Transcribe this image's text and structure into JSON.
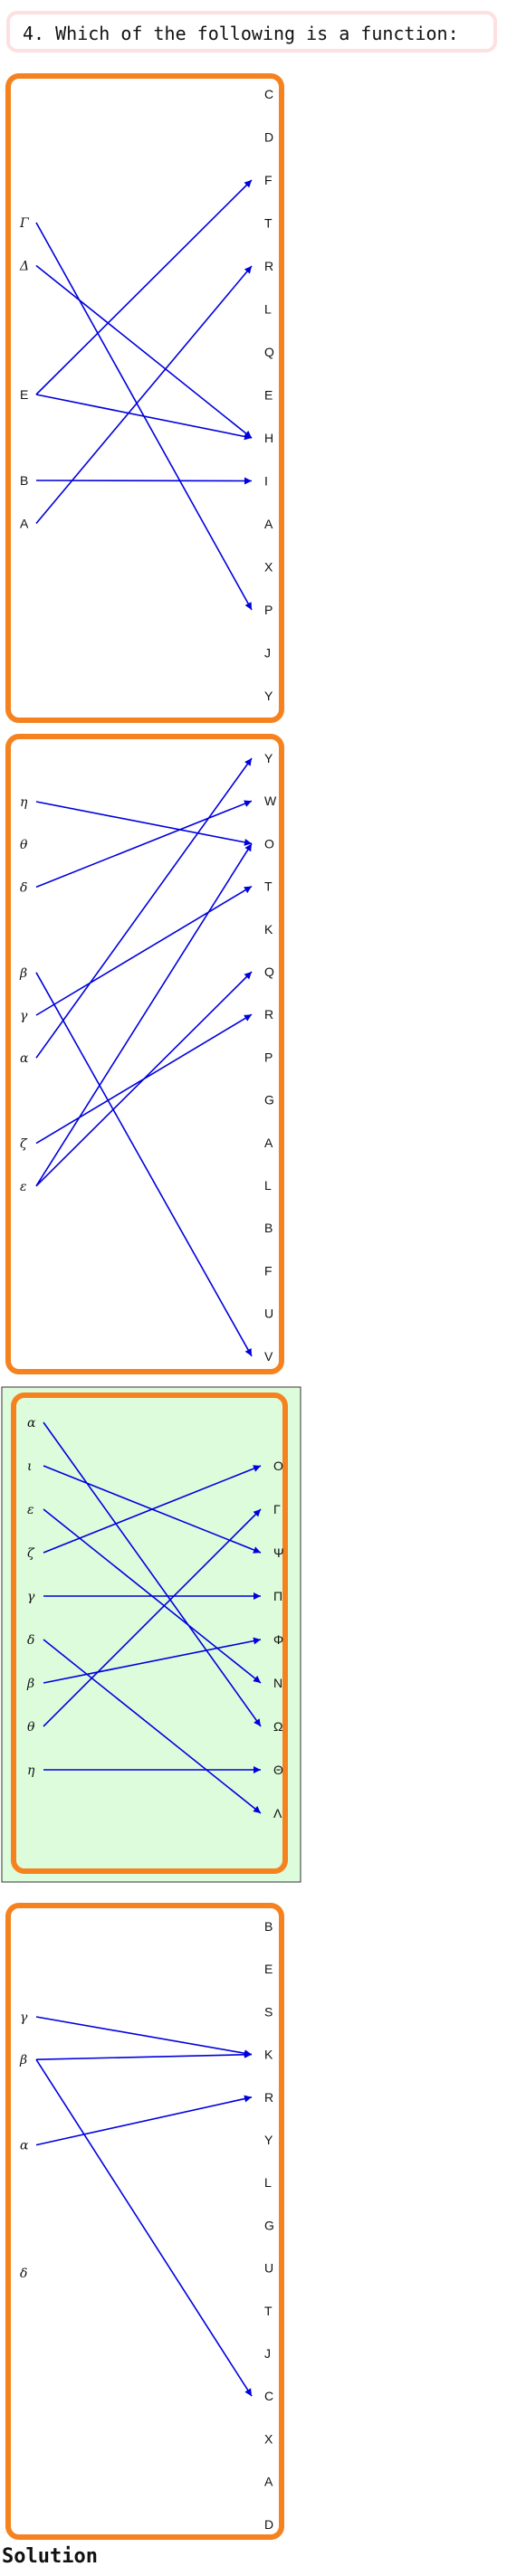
{
  "question": "4. Which of the following is a function:",
  "footer": "Solution",
  "colors": {
    "border": "#f5821f",
    "arrow": "#0000dd",
    "highlight_bg": "#ddfcdc",
    "highlight_outline": "#333333"
  },
  "mappings": [
    {
      "highlighted": false,
      "domain": [
        "Γ",
        "Δ",
        "",
        "",
        "E",
        "",
        "B",
        "A"
      ],
      "codomain": [
        "C",
        "D",
        "F",
        "T",
        "R",
        "L",
        "Q",
        "E",
        "H",
        "I",
        "A",
        "X",
        "P",
        "J",
        "Y"
      ],
      "arrows": [
        [
          0,
          12
        ],
        [
          1,
          8
        ],
        [
          4,
          2
        ],
        [
          4,
          8
        ],
        [
          6,
          9
        ],
        [
          7,
          4
        ]
      ]
    },
    {
      "highlighted": false,
      "domain": [
        "η",
        "θ",
        "δ",
        "",
        "β",
        "γ",
        "α",
        "",
        "ζ",
        "ε"
      ],
      "codomain": [
        "Y",
        "W",
        "O",
        "T",
        "K",
        "Q",
        "R",
        "P",
        "G",
        "A",
        "L",
        "B",
        "F",
        "U",
        "V"
      ],
      "arrows": [
        [
          0,
          2
        ],
        [
          2,
          1
        ],
        [
          4,
          14
        ],
        [
          5,
          3
        ],
        [
          6,
          0
        ],
        [
          8,
          6
        ],
        [
          9,
          2
        ],
        [
          9,
          5
        ]
      ]
    },
    {
      "highlighted": true,
      "domain": [
        "α",
        "ι",
        "ε",
        "ζ",
        "γ",
        "δ",
        "β",
        "θ",
        "η"
      ],
      "codomain": [
        "O",
        "Γ",
        "Ψ",
        "Π",
        "Φ",
        "N",
        "Ω",
        "Θ",
        "Λ"
      ],
      "arrows": [
        [
          0,
          6
        ],
        [
          1,
          2
        ],
        [
          2,
          5
        ],
        [
          3,
          0
        ],
        [
          4,
          3
        ],
        [
          5,
          8
        ],
        [
          6,
          4
        ],
        [
          7,
          1
        ],
        [
          8,
          7
        ]
      ]
    },
    {
      "highlighted": false,
      "domain": [
        "γ",
        "β",
        "",
        "α",
        "",
        "",
        "δ"
      ],
      "codomain": [
        "B",
        "E",
        "S",
        "K",
        "R",
        "Y",
        "L",
        "G",
        "U",
        "T",
        "J",
        "C",
        "X",
        "A",
        "D"
      ],
      "arrows": [
        [
          0,
          3
        ],
        [
          1,
          3
        ],
        [
          1,
          11
        ],
        [
          3,
          4
        ]
      ]
    }
  ]
}
